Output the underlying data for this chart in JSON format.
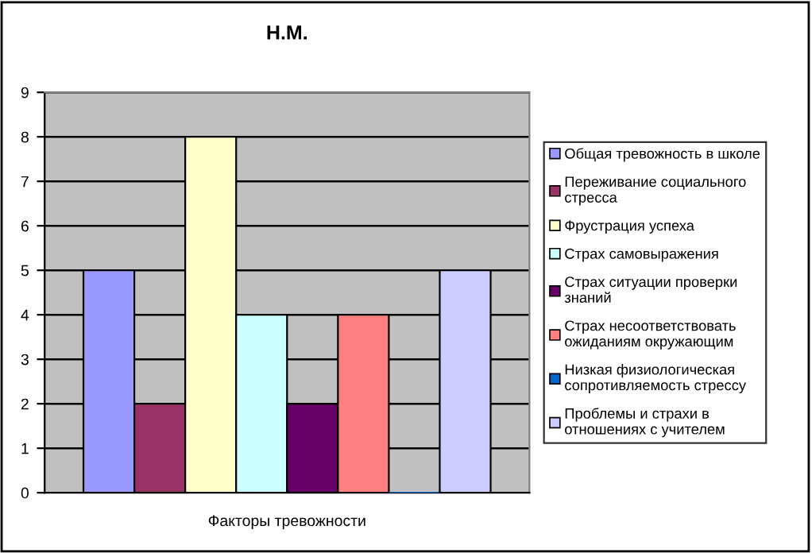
{
  "chart_data": {
    "type": "bar",
    "title": "Н.М.",
    "categories": [
      "Факторы тревожности"
    ],
    "series": [
      {
        "name": "Общая тревожность в школе",
        "color": "#9999ff",
        "values": [
          5
        ]
      },
      {
        "name": "Переживание социального\nстресса",
        "color": "#993366",
        "values": [
          2
        ]
      },
      {
        "name": "Фрустрация успеха",
        "color": "#ffffcc",
        "values": [
          8
        ]
      },
      {
        "name": "Страх самовыражения",
        "color": "#ccffff",
        "values": [
          4
        ]
      },
      {
        "name": "Страх ситуации проверки\nзнаний",
        "color": "#660066",
        "values": [
          2
        ]
      },
      {
        "name": "Страх несоответствовать\nожиданиям окружающим",
        "color": "#ff8080",
        "values": [
          4
        ]
      },
      {
        "name": "Низкая физиологическая\nсопротивляемость стрессу",
        "color": "#0066cc",
        "values": [
          0
        ]
      },
      {
        "name": "Проблемы и страхи в\nотношениях с учителем",
        "color": "#ccccff",
        "values": [
          5
        ]
      }
    ],
    "ylim": [
      0,
      9
    ],
    "yticks": [
      0,
      1,
      2,
      3,
      4,
      5,
      6,
      7,
      8,
      9
    ],
    "grid": "y",
    "legend": "right"
  }
}
